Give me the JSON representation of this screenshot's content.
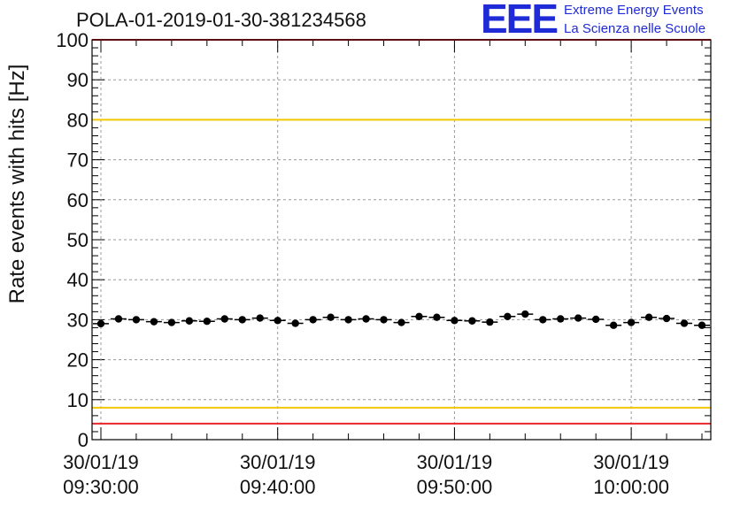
{
  "chart_data": {
    "type": "scatter",
    "title": "POLA-01-2019-01-30-381234568",
    "ylabel": "Rate events with hits [Hz]",
    "xlabel": "",
    "ylim": [
      0,
      100
    ],
    "xlim": [
      "2019-01-30 09:29:30",
      "2019-01-30 10:04:30"
    ],
    "y_ticks": [
      "0",
      "10",
      "20",
      "30",
      "40",
      "50",
      "60",
      "70",
      "80",
      "90",
      "100"
    ],
    "x_ticks": [
      {
        "date": "30/01/19",
        "time": "09:30:00"
      },
      {
        "date": "30/01/19",
        "time": "09:40:00"
      },
      {
        "date": "30/01/19",
        "time": "09:50:00"
      },
      {
        "date": "30/01/19",
        "time": "10:00:00"
      }
    ],
    "grid": true,
    "reference_lines": [
      {
        "value": 100,
        "color": "#e8262b"
      },
      {
        "value": 80,
        "color": "#f2c700"
      },
      {
        "value": 8,
        "color": "#f2c700"
      },
      {
        "value": 4,
        "color": "#e8262b"
      }
    ],
    "series": [
      {
        "color": "#000000",
        "x": [
          "09:30:00",
          "09:31:00",
          "09:32:00",
          "09:33:00",
          "09:34:00",
          "09:35:00",
          "09:36:00",
          "09:37:00",
          "09:38:00",
          "09:39:00",
          "09:40:00",
          "09:41:00",
          "09:42:00",
          "09:43:00",
          "09:44:00",
          "09:45:00",
          "09:46:00",
          "09:47:00",
          "09:48:00",
          "09:49:00",
          "09:50:00",
          "09:51:00",
          "09:52:00",
          "09:53:00",
          "09:54:00",
          "09:55:00",
          "09:56:00",
          "09:57:00",
          "09:58:00",
          "09:59:00",
          "10:00:00",
          "10:01:00",
          "10:02:00",
          "10:03:00",
          "10:04:00"
        ],
        "y": [
          29.0,
          30.2,
          30.0,
          29.5,
          29.3,
          29.7,
          29.6,
          30.2,
          30.0,
          30.4,
          29.8,
          29.1,
          30.0,
          30.6,
          30.0,
          30.2,
          30.0,
          29.3,
          30.8,
          30.6,
          29.8,
          29.7,
          29.4,
          30.8,
          31.4,
          30.0,
          30.2,
          30.4,
          30.1,
          28.6,
          29.3,
          30.6,
          30.3,
          29.1,
          28.6
        ]
      }
    ]
  },
  "logo": {
    "mark": "EEE",
    "line1": "Extreme Energy Events",
    "line2": "La Scienza nelle Scuole"
  }
}
